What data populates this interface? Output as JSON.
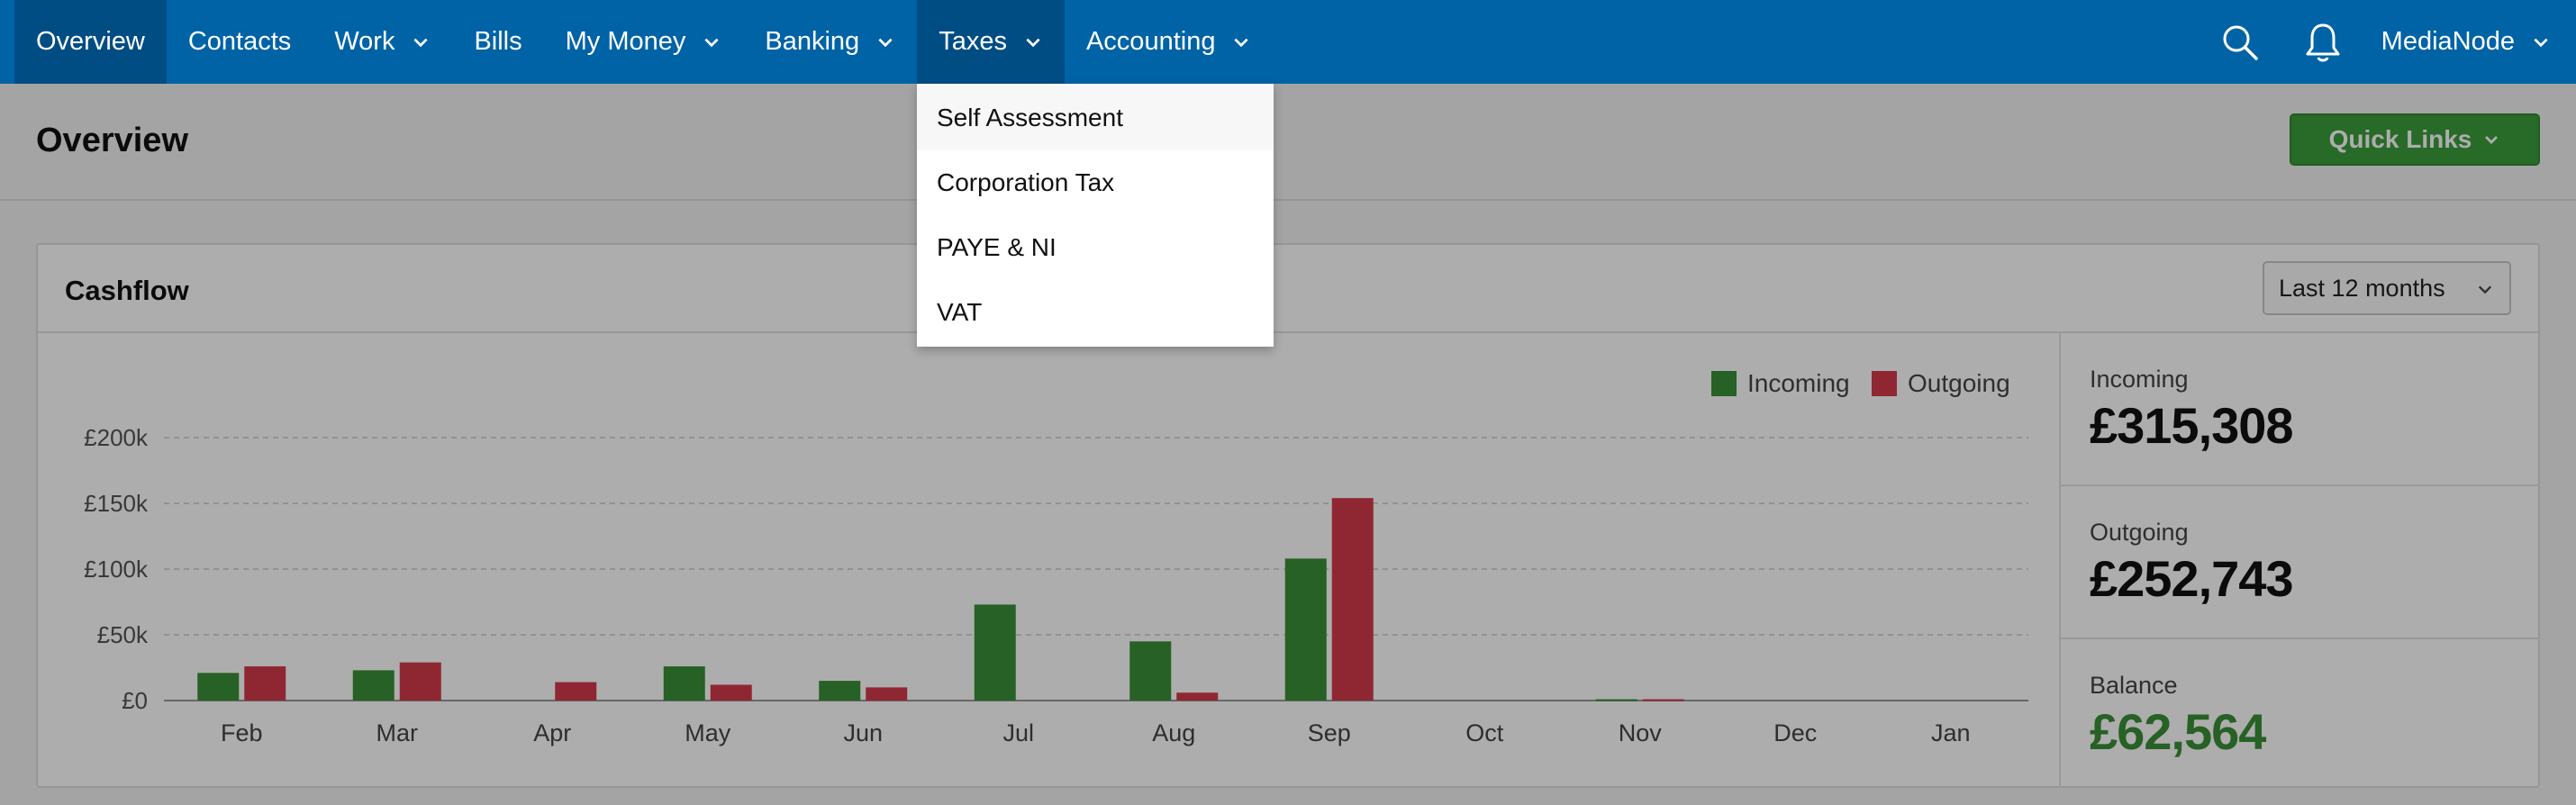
{
  "nav": {
    "items": [
      {
        "label": "Overview"
      },
      {
        "label": "Contacts"
      },
      {
        "label": "Work"
      },
      {
        "label": "Bills"
      },
      {
        "label": "My Money"
      },
      {
        "label": "Banking"
      },
      {
        "label": "Taxes"
      },
      {
        "label": "Accounting"
      }
    ],
    "account": "MediaNode",
    "active": "Overview",
    "open_menu": "Taxes"
  },
  "taxes_menu": {
    "items": [
      "Self Assessment",
      "Corporation Tax",
      "PAYE & NI",
      "VAT"
    ]
  },
  "page": {
    "title": "Overview",
    "quick_links": "Quick Links"
  },
  "cashflow": {
    "title": "Cashflow",
    "period": "Last 12 months",
    "stats": {
      "incoming_label": "Incoming",
      "incoming_value": "£315,308",
      "outgoing_label": "Outgoing",
      "outgoing_value": "£252,743",
      "balance_label": "Balance",
      "balance_value": "£62,564"
    }
  },
  "colors": {
    "nav": "#0063a6",
    "incoming": "#3a8f37",
    "outgoing": "#d33a4a",
    "quick_links": "#3c9d3a"
  },
  "chart_data": {
    "type": "bar",
    "categories": [
      "Feb",
      "Mar",
      "Apr",
      "May",
      "Jun",
      "Jul",
      "Aug",
      "Sep",
      "Oct",
      "Nov",
      "Dec",
      "Jan"
    ],
    "series": [
      {
        "name": "Incoming",
        "values": [
          21,
          23,
          0,
          26,
          15,
          73,
          45,
          108,
          0,
          1,
          0,
          0
        ]
      },
      {
        "name": "Outgoing",
        "values": [
          26,
          29,
          14,
          12,
          10,
          0,
          6,
          154,
          0,
          1,
          0,
          0
        ]
      }
    ],
    "yticks": [
      "£0",
      "£50k",
      "£100k",
      "£150k",
      "£200k"
    ],
    "ylim": [
      0,
      200
    ],
    "unit": "£k",
    "legend": "top-right",
    "grid": true
  }
}
